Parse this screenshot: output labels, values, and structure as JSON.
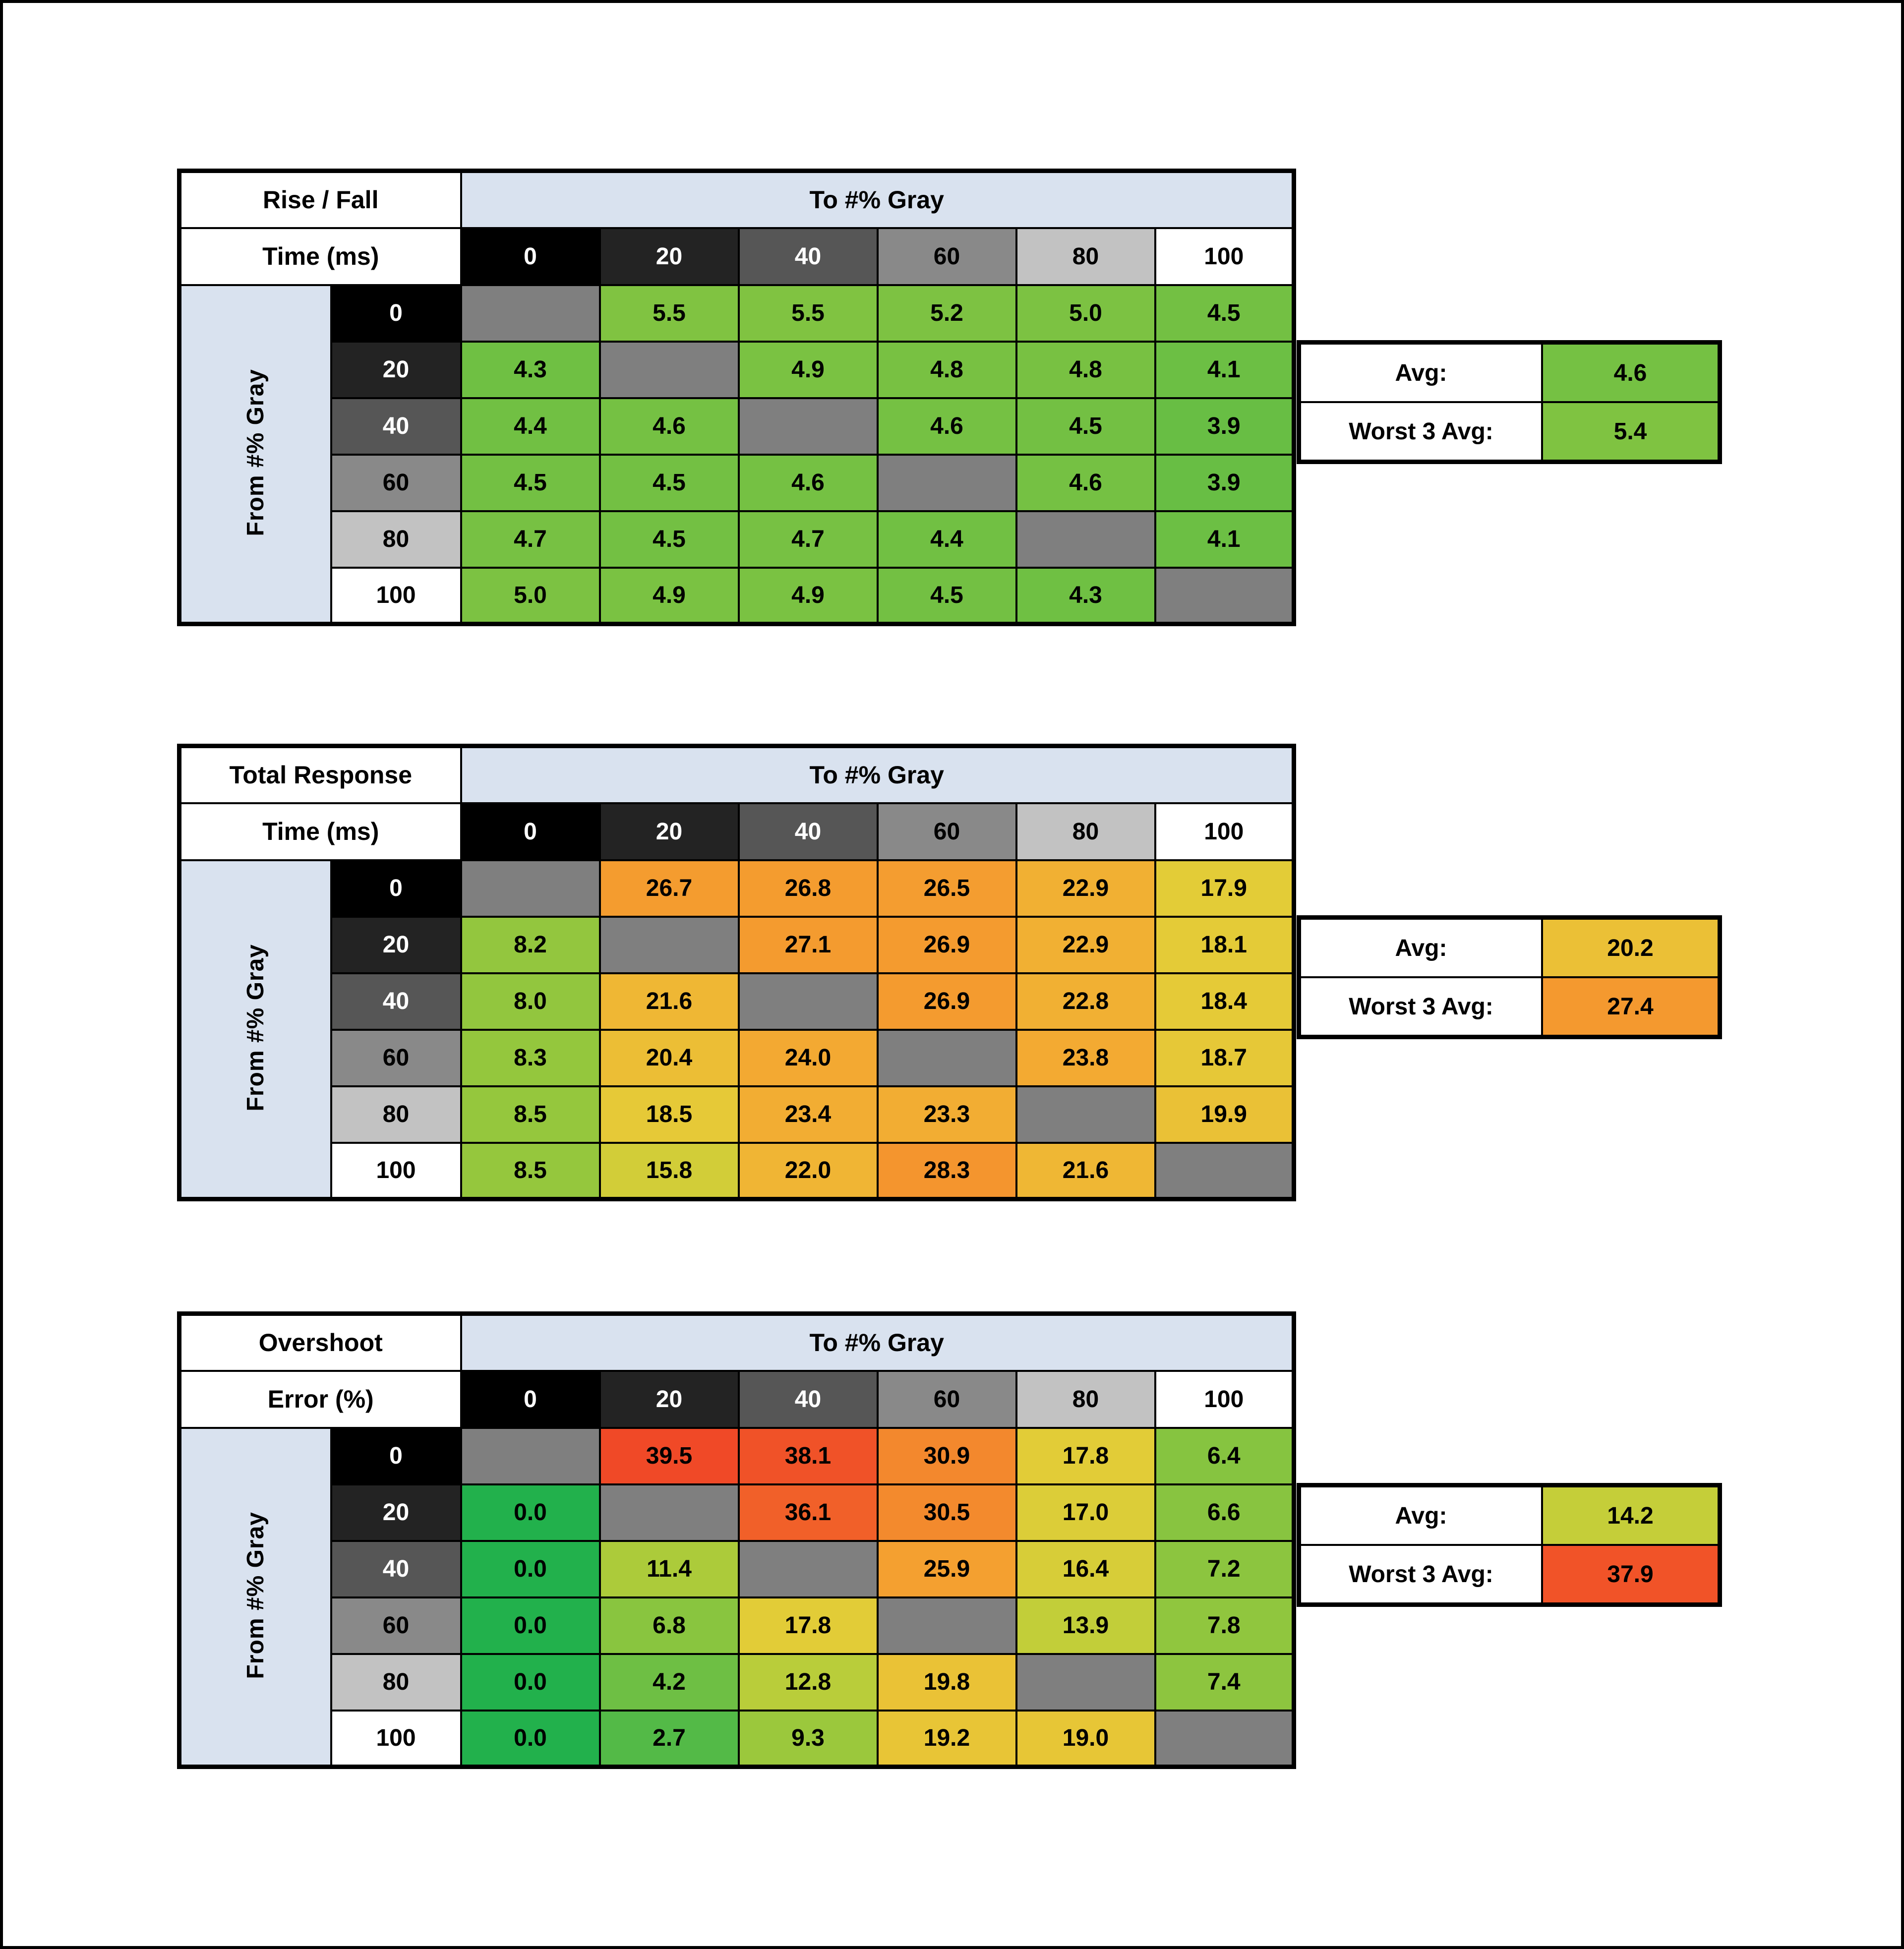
{
  "frame": {
    "background": "#ffffff",
    "border_color": "#000000"
  },
  "shared": {
    "to_axis_label": "To #% Gray",
    "from_axis_label": "From #% Gray",
    "avg_label": "Avg:",
    "worst_label": "Worst 3 Avg:",
    "gray_levels": [
      "0",
      "20",
      "40",
      "60",
      "80",
      "100"
    ]
  },
  "colors": {
    "band_bg": "#d9e2ef",
    "diagonal_bg": "#7f7f7f",
    "title_bg": "#ffffff",
    "grid_line": "#000000",
    "gray_header_bg": [
      "#000000",
      "#232323",
      "#565656",
      "#898989",
      "#c2c2c2",
      "#ffffff"
    ],
    "gray_header_fg": [
      "#ffffff",
      "#ffffff",
      "#ffffff",
      "#000000",
      "#000000",
      "#000000"
    ],
    "scale": [
      [
        0,
        "#22b14c"
      ],
      [
        5,
        "#7cc242"
      ],
      [
        10,
        "#a0c93b"
      ],
      [
        14,
        "#c3ce39"
      ],
      [
        18,
        "#e4cc37"
      ],
      [
        21,
        "#eebb35"
      ],
      [
        24,
        "#f3a932"
      ],
      [
        27,
        "#f49b2f"
      ],
      [
        31,
        "#f3872d"
      ],
      [
        35,
        "#f2682a"
      ],
      [
        39,
        "#f04b27"
      ],
      [
        45,
        "#ee2e23"
      ]
    ]
  },
  "chart_data": [
    {
      "type": "heatmap",
      "name": "rise-fall-time",
      "title_lines": [
        "Rise / Fall",
        "Time (ms)"
      ],
      "xlabel": "To #% Gray",
      "ylabel": "From #% Gray",
      "x": [
        "0",
        "20",
        "40",
        "60",
        "80",
        "100"
      ],
      "y": [
        "0",
        "20",
        "40",
        "60",
        "80",
        "100"
      ],
      "values": [
        [
          null,
          5.5,
          5.5,
          5.2,
          5.0,
          4.5
        ],
        [
          4.3,
          null,
          4.9,
          4.8,
          4.8,
          4.1
        ],
        [
          4.4,
          4.6,
          null,
          4.6,
          4.5,
          3.9
        ],
        [
          4.5,
          4.5,
          4.6,
          null,
          4.6,
          3.9
        ],
        [
          4.7,
          4.5,
          4.7,
          4.4,
          null,
          4.1
        ],
        [
          5.0,
          4.9,
          4.9,
          4.5,
          4.3,
          null
        ]
      ],
      "avg": 4.6,
      "worst3_avg": 5.4
    },
    {
      "type": "heatmap",
      "name": "total-response-time",
      "title_lines": [
        "Total Response",
        "Time (ms)"
      ],
      "xlabel": "To #% Gray",
      "ylabel": "From #% Gray",
      "x": [
        "0",
        "20",
        "40",
        "60",
        "80",
        "100"
      ],
      "y": [
        "0",
        "20",
        "40",
        "60",
        "80",
        "100"
      ],
      "values": [
        [
          null,
          26.7,
          26.8,
          26.5,
          22.9,
          17.9
        ],
        [
          8.2,
          null,
          27.1,
          26.9,
          22.9,
          18.1
        ],
        [
          8.0,
          21.6,
          null,
          26.9,
          22.8,
          18.4
        ],
        [
          8.3,
          20.4,
          24.0,
          null,
          23.8,
          18.7
        ],
        [
          8.5,
          18.5,
          23.4,
          23.3,
          null,
          19.9
        ],
        [
          8.5,
          15.8,
          22.0,
          28.3,
          21.6,
          null
        ]
      ],
      "avg": 20.2,
      "worst3_avg": 27.4
    },
    {
      "type": "heatmap",
      "name": "overshoot-error",
      "title_lines": [
        "Overshoot",
        "Error (%)"
      ],
      "xlabel": "To #% Gray",
      "ylabel": "From #% Gray",
      "x": [
        "0",
        "20",
        "40",
        "60",
        "80",
        "100"
      ],
      "y": [
        "0",
        "20",
        "40",
        "60",
        "80",
        "100"
      ],
      "values": [
        [
          null,
          39.5,
          38.1,
          30.9,
          17.8,
          6.4
        ],
        [
          0.0,
          null,
          36.1,
          30.5,
          17.0,
          6.6
        ],
        [
          0.0,
          11.4,
          null,
          25.9,
          16.4,
          7.2
        ],
        [
          0.0,
          6.8,
          17.8,
          null,
          13.9,
          7.8
        ],
        [
          0.0,
          4.2,
          12.8,
          19.8,
          null,
          7.4
        ],
        [
          0.0,
          2.7,
          9.3,
          19.2,
          19.0,
          null
        ]
      ],
      "avg": 14.2,
      "worst3_avg": 37.9
    }
  ]
}
